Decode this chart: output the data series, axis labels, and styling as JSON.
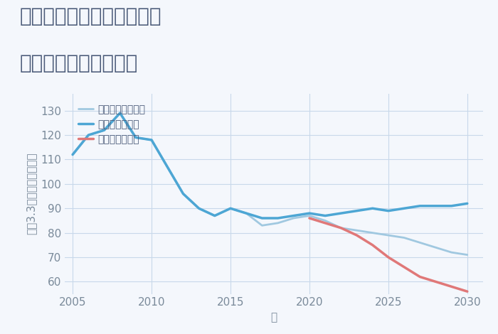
{
  "title_line1": "兵庫県豊岡市日高町夏栗の",
  "title_line2": "中古戸建ての価格推移",
  "xlabel": "年",
  "ylabel": "坪（3.3㎡）単価（万円）",
  "background_color": "#f4f7fc",
  "plot_bg_color": "#f4f7fc",
  "ylim": [
    55,
    137
  ],
  "yticks": [
    60,
    70,
    80,
    90,
    100,
    110,
    120,
    130
  ],
  "xlim": [
    2004.5,
    2031
  ],
  "xticks": [
    2005,
    2010,
    2015,
    2020,
    2025,
    2030
  ],
  "grid_color": "#c8d8ea",
  "series": {
    "good": {
      "label": "グッドシナリオ",
      "color": "#4da6d4",
      "linewidth": 2.5,
      "x": [
        2005,
        2006,
        2007,
        2008,
        2009,
        2010,
        2011,
        2012,
        2013,
        2014,
        2015,
        2016,
        2017,
        2018,
        2019,
        2020,
        2021,
        2022,
        2023,
        2024,
        2025,
        2026,
        2027,
        2028,
        2029,
        2030
      ],
      "y": [
        112,
        120,
        122,
        129,
        119,
        118,
        107,
        96,
        90,
        87,
        90,
        88,
        86,
        86,
        87,
        88,
        87,
        88,
        89,
        90,
        89,
        90,
        91,
        91,
        91,
        92
      ]
    },
    "bad": {
      "label": "バッドシナリオ",
      "color": "#e07878",
      "linewidth": 2.5,
      "x": [
        2020,
        2021,
        2022,
        2023,
        2024,
        2025,
        2026,
        2027,
        2028,
        2029,
        2030
      ],
      "y": [
        86,
        84,
        82,
        79,
        75,
        70,
        66,
        62,
        60,
        58,
        56
      ]
    },
    "normal": {
      "label": "ノーマルシナリオ",
      "color": "#a0c8e0",
      "linewidth": 2.0,
      "x": [
        2005,
        2006,
        2007,
        2008,
        2009,
        2010,
        2011,
        2012,
        2013,
        2014,
        2015,
        2016,
        2017,
        2018,
        2019,
        2020,
        2021,
        2022,
        2023,
        2024,
        2025,
        2026,
        2027,
        2028,
        2029,
        2030
      ],
      "y": [
        112,
        120,
        122,
        129,
        119,
        118,
        107,
        96,
        90,
        87,
        90,
        88,
        83,
        84,
        86,
        87,
        85,
        82,
        81,
        80,
        79,
        78,
        76,
        74,
        72,
        71
      ]
    }
  },
  "title_color": "#4a5a78",
  "axis_color": "#7a8a9a",
  "title_fontsize": 20,
  "tick_fontsize": 11,
  "label_fontsize": 11,
  "legend_fontsize": 10
}
